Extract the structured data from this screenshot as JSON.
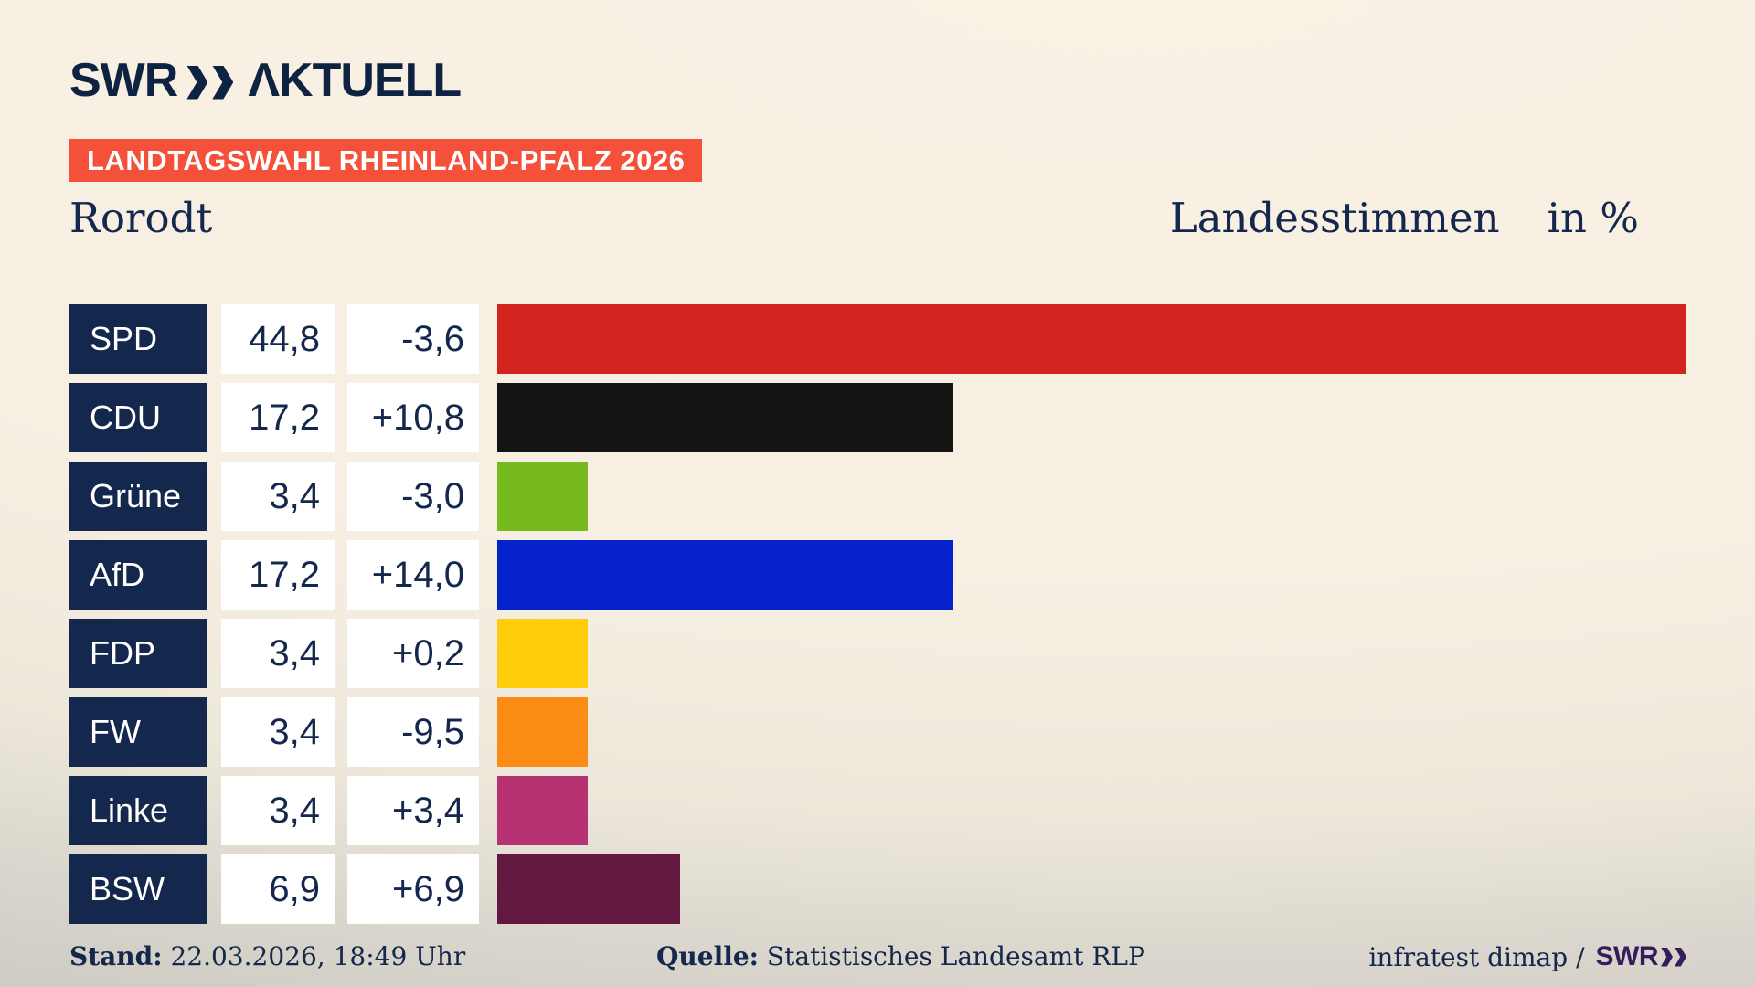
{
  "header": {
    "brand": "SWR",
    "brand_suffix": "ΛKTUELL",
    "banner": "LANDTAGSWAHL RHEINLAND-PFALZ 2026",
    "region": "Rorodt",
    "measure": "Landesstimmen",
    "unit": "in %"
  },
  "footer": {
    "stand_label": "Stand:",
    "stand_value": "22.03.2026, 18:49 Uhr",
    "source_label": "Quelle:",
    "source_value": "Statistisches Landesamt RLP",
    "credit": "infratest dimap /",
    "credit_brand": "SWR"
  },
  "colors": {
    "background_light": "#f8f1e4",
    "background_shade": "#cccac3",
    "navy": "#13284c",
    "logo_navy": "#0e2342",
    "banner_red": "#f4503a",
    "box_white": "#ffffff",
    "credit_purple": "#351d5c"
  },
  "chart_data": {
    "type": "bar",
    "orientation": "horizontal",
    "title": "Landtagswahl Rheinland-Pfalz 2026 – Rorodt – Landesstimmen in %",
    "unit": "%",
    "axis_max": 45.2,
    "grid": false,
    "legend": false,
    "categories": [
      "SPD",
      "CDU",
      "Grüne",
      "AfD",
      "FDP",
      "FW",
      "Linke",
      "BSW"
    ],
    "values": [
      44.8,
      17.2,
      3.4,
      17.2,
      3.4,
      3.4,
      3.4,
      6.9
    ],
    "diffs": [
      -3.6,
      10.8,
      -3.0,
      14.0,
      0.2,
      -9.5,
      3.4,
      6.9
    ],
    "parties": [
      {
        "name": "SPD",
        "value": 44.8,
        "value_label": "44,8",
        "diff_label": "-3,6",
        "color": "#d2231f"
      },
      {
        "name": "CDU",
        "value": 17.2,
        "value_label": "17,2",
        "diff_label": "+10,8",
        "color": "#141414"
      },
      {
        "name": "Grüne",
        "value": 3.4,
        "value_label": "3,4",
        "diff_label": "-3,0",
        "color": "#76ba1d"
      },
      {
        "name": "AfD",
        "value": 17.2,
        "value_label": "17,2",
        "diff_label": "+14,0",
        "color": "#0622cb"
      },
      {
        "name": "FDP",
        "value": 3.4,
        "value_label": "3,4",
        "diff_label": "+0,2",
        "color": "#ffcd0a"
      },
      {
        "name": "FW",
        "value": 3.4,
        "value_label": "3,4",
        "diff_label": "-9,5",
        "color": "#fb8d17"
      },
      {
        "name": "Linke",
        "value": 3.4,
        "value_label": "3,4",
        "diff_label": "+3,4",
        "color": "#b73273"
      },
      {
        "name": "BSW",
        "value": 6.9,
        "value_label": "6,9",
        "diff_label": "+6,9",
        "color": "#63193f"
      }
    ]
  }
}
